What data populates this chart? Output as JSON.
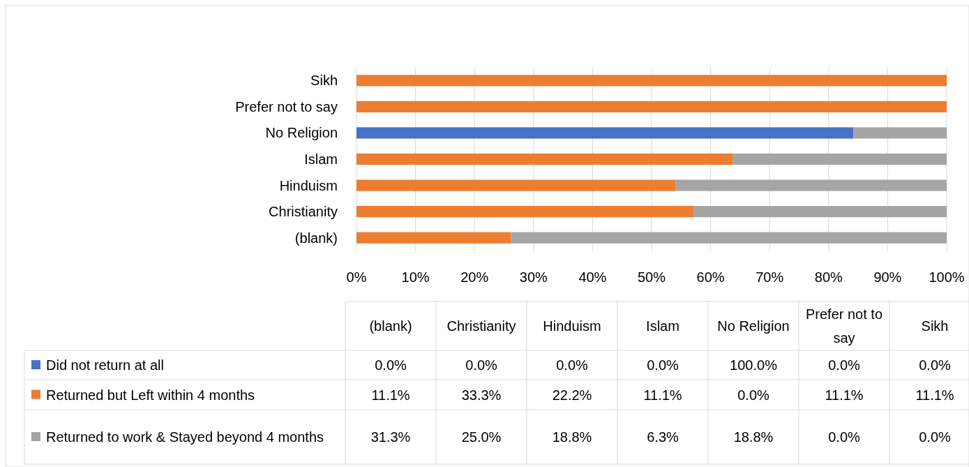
{
  "chart_data": {
    "type": "bar",
    "orientation": "horizontal",
    "stacked": true,
    "categories": [
      "Sikh",
      "Prefer not to say",
      "No Religion",
      "Islam",
      "Hinduism",
      "Christianity",
      "(blank)"
    ],
    "series": [
      {
        "name": "Did not return at all",
        "color": "#4472c4",
        "values": [
          0,
          0,
          84.2,
          0,
          0,
          0,
          0
        ]
      },
      {
        "name": "Returned but Left within 4 months",
        "color": "#ed7d31",
        "values": [
          100,
          100,
          0,
          63.8,
          54.1,
          57.1,
          26.2
        ]
      },
      {
        "name": "Returned to work & Stayed beyond 4 months",
        "color": "#a5a5a5",
        "values": [
          0,
          0,
          15.8,
          36.2,
          45.9,
          42.9,
          73.8
        ]
      }
    ],
    "annotations": [
      "0.0%",
      "0.0%",
      "0.0%",
      "0.0%",
      "100.0%",
      "0.0%",
      "0.0%",
      "11.1%",
      "33.3%",
      "22.2%",
      "11.1%",
      "0.0%",
      "11.1%",
      "11.1%",
      "31.3%",
      "25.0%",
      "18.8%",
      "6.3%",
      "18.8%",
      "0.0%",
      "0.0%"
    ],
    "xlim": [
      0,
      100
    ],
    "xticks": [
      {
        "value": 0,
        "label": "0%"
      },
      {
        "value": 10,
        "label": "10%"
      },
      {
        "value": 20,
        "label": "20%"
      },
      {
        "value": 30,
        "label": "30%"
      },
      {
        "value": 40,
        "label": "40%"
      },
      {
        "value": 50,
        "label": "50%"
      },
      {
        "value": 60,
        "label": "60%"
      },
      {
        "value": 70,
        "label": "70%"
      },
      {
        "value": 80,
        "label": "80%"
      },
      {
        "value": 90,
        "label": "90%"
      },
      {
        "value": 100,
        "label": "100%"
      }
    ],
    "grid": "x",
    "legend": "bottom"
  }
}
